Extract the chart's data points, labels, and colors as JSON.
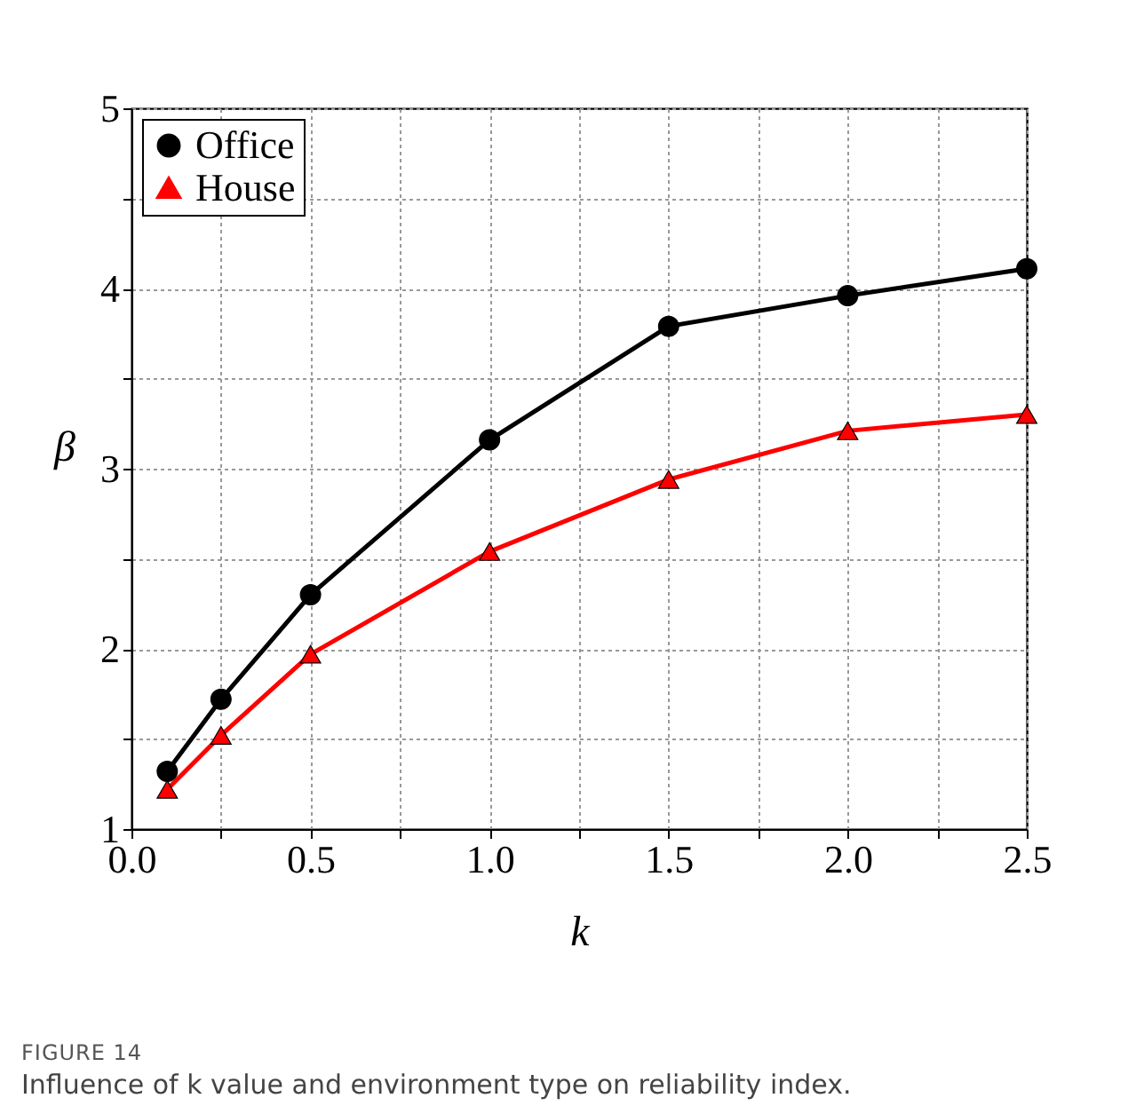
{
  "chart_data": {
    "type": "line",
    "xlabel": "k",
    "ylabel": "β",
    "x": [
      0.1,
      0.25,
      0.5,
      1.0,
      1.5,
      2.0,
      2.5
    ],
    "series": [
      {
        "name": "Office",
        "color": "#000000",
        "marker": "circle",
        "values": [
          1.32,
          1.72,
          2.3,
          3.16,
          3.79,
          3.96,
          4.11
        ]
      },
      {
        "name": "House",
        "color": "#ff0000",
        "marker": "triangle",
        "values": [
          1.22,
          1.52,
          1.97,
          2.54,
          2.94,
          3.21,
          3.3
        ]
      }
    ],
    "xlim": [
      0,
      2.5
    ],
    "xticks": [
      {
        "value": 0,
        "label": "0.0"
      },
      {
        "value": 0.25,
        "label": null
      },
      {
        "value": 0.5,
        "label": "0.5"
      },
      {
        "value": 0.75,
        "label": null
      },
      {
        "value": 1,
        "label": "1.0"
      },
      {
        "value": 1.25,
        "label": null
      },
      {
        "value": 1.5,
        "label": "1.5"
      },
      {
        "value": 1.75,
        "label": null
      },
      {
        "value": 2,
        "label": "2.0"
      },
      {
        "value": 2.25,
        "label": null
      },
      {
        "value": 2.5,
        "label": "2.5"
      }
    ],
    "ylim": [
      1,
      5
    ],
    "yticks": [
      1,
      {
        "value": 1.5,
        "label": null
      },
      2,
      {
        "value": 2.5,
        "label": null
      },
      3,
      {
        "value": 3.5,
        "label": null
      },
      4,
      {
        "value": 4.5,
        "label": null
      },
      5
    ],
    "grid": true,
    "legend": "top left",
    "line_style": "solid",
    "annotations": [
      "FIGURE 14",
      "Influence of k value and environment type on reliability index."
    ]
  }
}
